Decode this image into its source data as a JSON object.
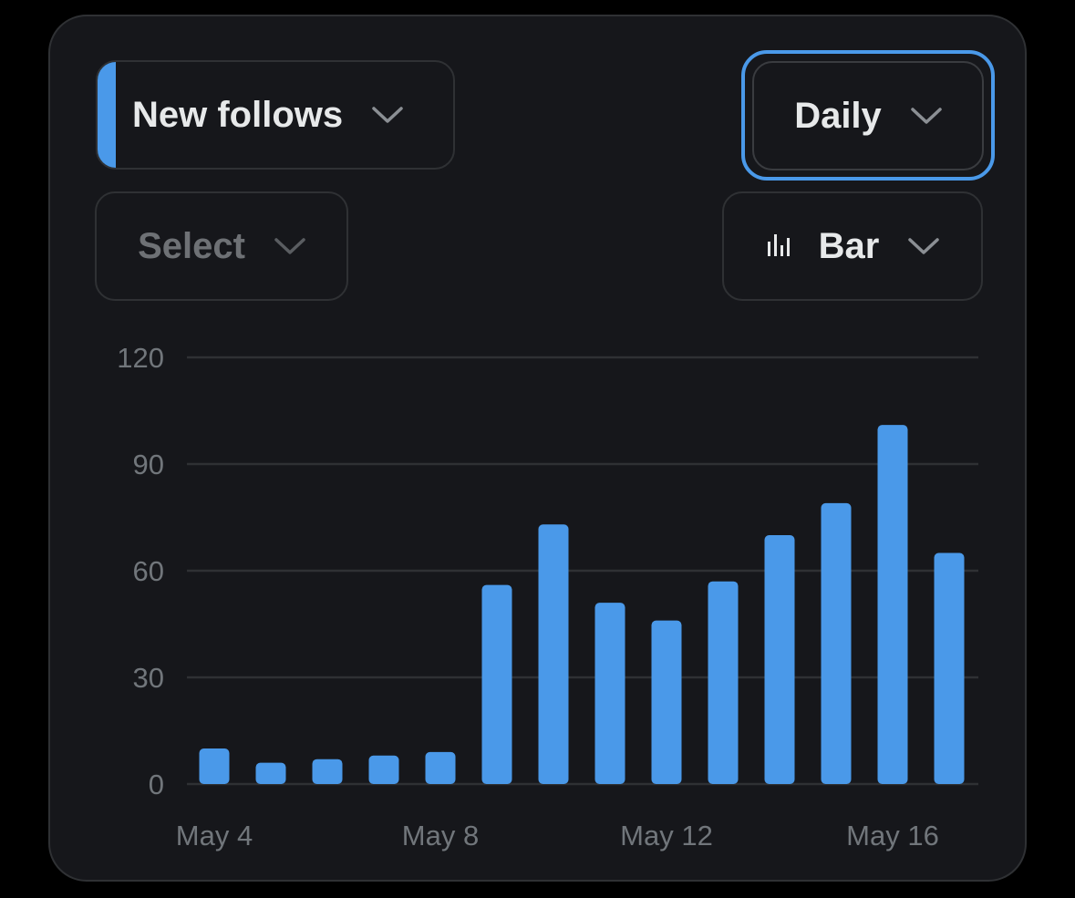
{
  "controls": {
    "metric": {
      "label": "New follows",
      "accent_color": "#4a99e9",
      "icon": "chevron-down-icon"
    },
    "period": {
      "label": "Daily",
      "icon": "chevron-down-icon",
      "focused": true
    },
    "compare": {
      "label": "Select",
      "icon": "chevron-down-icon"
    },
    "chart_type": {
      "label": "Bar",
      "icon": "bar-chart-icon"
    }
  },
  "colors": {
    "bar": "#4a99e9",
    "grid": "#2f3134",
    "background": "#16171b",
    "text": "#e7e9ea",
    "muted": "#71767b"
  },
  "chart_data": {
    "type": "bar",
    "categories": [
      "May 4",
      "May 5",
      "May 6",
      "May 7",
      "May 8",
      "May 9",
      "May 10",
      "May 11",
      "May 12",
      "May 13",
      "May 14",
      "May 15",
      "May 16",
      "May 17"
    ],
    "values": [
      10,
      6,
      7,
      8,
      9,
      56,
      73,
      51,
      46,
      57,
      70,
      79,
      101,
      65
    ],
    "ylim": [
      0,
      120
    ],
    "yticks": [
      0,
      30,
      60,
      90,
      120
    ],
    "xticks": [
      "May 4",
      "May 8",
      "May 12",
      "May 16"
    ],
    "grid": true,
    "title": "",
    "xlabel": "",
    "ylabel": ""
  }
}
